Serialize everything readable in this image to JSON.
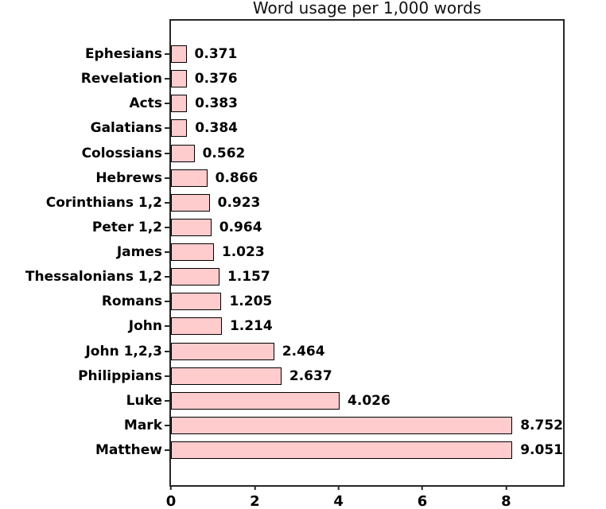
{
  "chart_data": {
    "type": "bar",
    "orientation": "horizontal",
    "title": "Word usage per 1,000 words",
    "categories": [
      "Ephesians",
      "Revelation",
      "Acts",
      "Galatians",
      "Colossians",
      "Hebrews",
      "Corinthians 1,2",
      "Peter 1,2",
      "James",
      "Thessalonians 1,2",
      "Romans",
      "John",
      "John 1,2,3",
      "Philippians",
      "Luke",
      "Mark",
      "Matthew"
    ],
    "values": [
      0.371,
      0.376,
      0.383,
      0.384,
      0.562,
      0.866,
      0.923,
      0.964,
      1.023,
      1.157,
      1.205,
      1.214,
      2.464,
      2.637,
      4.026,
      8.752,
      9.051
    ],
    "value_labels": [
      "0.371",
      "0.376",
      "0.383",
      "0.384",
      "0.562",
      "0.866",
      "0.923",
      "0.964",
      "1.023",
      "1.157",
      "1.205",
      "1.214",
      "2.464",
      "2.637",
      "4.026",
      "8.752",
      "9.051"
    ],
    "xlabel": "",
    "ylabel": "",
    "xticks": [
      0,
      2,
      4,
      6,
      8
    ],
    "xlim": [
      0,
      9.36
    ],
    "grid": false,
    "legend": false,
    "bar_color": "#ffcccd",
    "bar_edge_color": "#000000",
    "axis_color": "#262626",
    "text_color": "#000000"
  }
}
